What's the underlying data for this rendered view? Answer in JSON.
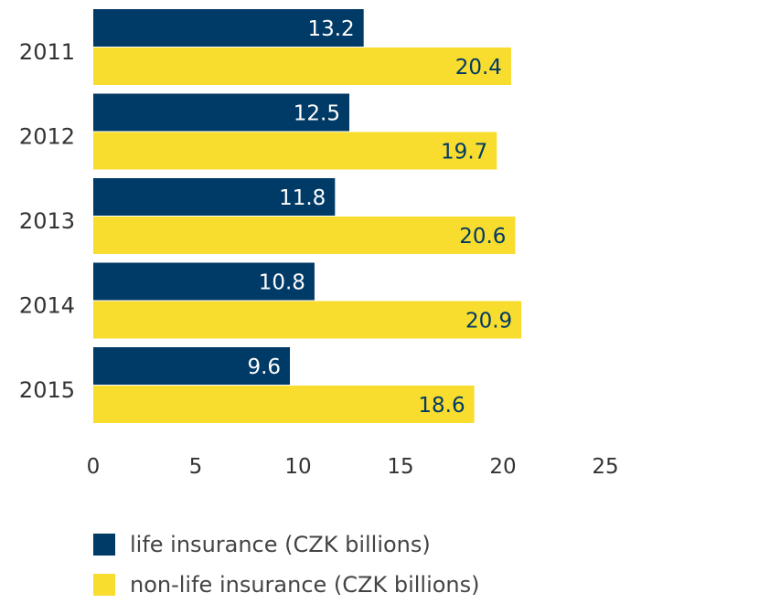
{
  "chart_data": {
    "type": "bar",
    "orientation": "horizontal",
    "categories": [
      "2011",
      "2012",
      "2013",
      "2014",
      "2015"
    ],
    "series": [
      {
        "name": "life insurance (CZK billions)",
        "color": "#003a66",
        "label_color": "#ffffff",
        "values": [
          13.2,
          12.5,
          11.8,
          10.8,
          9.6
        ]
      },
      {
        "name": "non-life insurance (CZK billions)",
        "color": "#f8dd2e",
        "label_color": "#003a66",
        "values": [
          20.4,
          19.7,
          20.6,
          20.9,
          18.6
        ]
      }
    ],
    "value_labels": [
      [
        "13.2",
        "12.5",
        "11.8",
        "10.8",
        "9.6"
      ],
      [
        "20.4",
        "19.7",
        "20.6",
        "20.9",
        "18.6"
      ]
    ],
    "xlim": [
      0,
      25
    ],
    "xticks": [
      "0",
      "5",
      "10",
      "15",
      "20",
      "25"
    ],
    "grid": false,
    "legend_position": "bottom-left",
    "tick_color": "#333333"
  }
}
